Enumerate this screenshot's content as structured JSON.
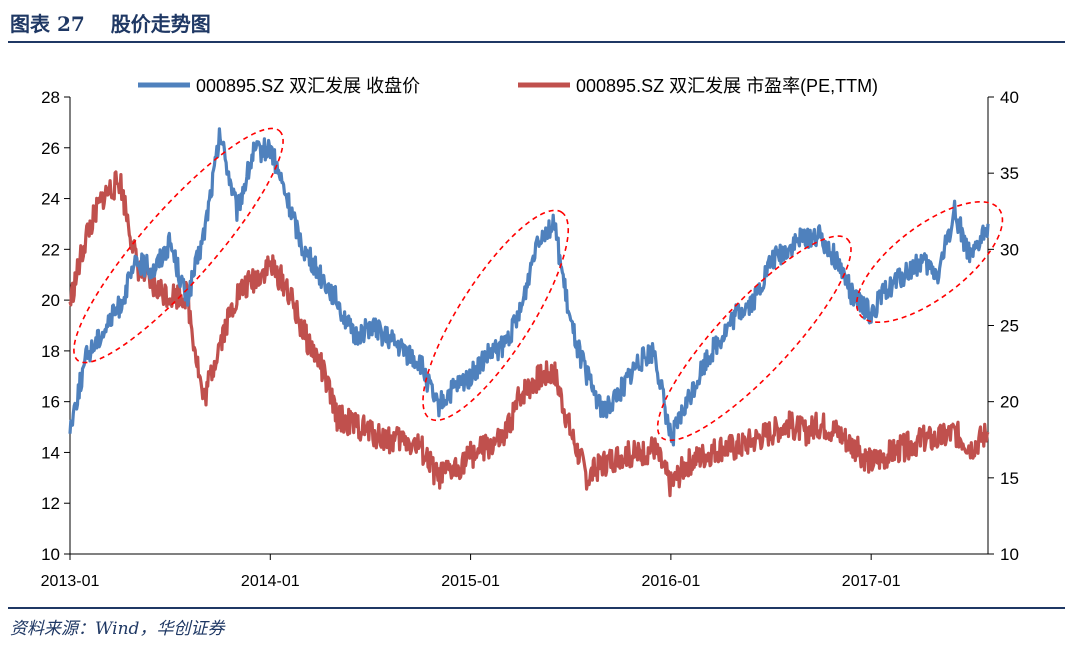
{
  "header": {
    "fig_label": "图表 27",
    "title": "股价走势图"
  },
  "footer": {
    "source": "资料来源：Wind，华创证券"
  },
  "chart_data": {
    "type": "line",
    "x_ticks": [
      "2013-01",
      "2014-01",
      "2015-01",
      "2016-01",
      "2017-01"
    ],
    "x_range": [
      "2013-01",
      "2017-08"
    ],
    "y_left": {
      "min": 10,
      "max": 28,
      "ticks": [
        10,
        12,
        14,
        16,
        18,
        20,
        22,
        24,
        26,
        28
      ]
    },
    "y_right": {
      "min": 10,
      "max": 40,
      "ticks": [
        10,
        15,
        20,
        25,
        30,
        35,
        40
      ]
    },
    "grid": false,
    "legend_position": "top",
    "series": [
      {
        "name": "000895.SZ 双汇发展 收盘价",
        "axis": "left",
        "color": "#4f81bd",
        "points": [
          [
            "2013-01",
            15.0
          ],
          [
            "2013-02",
            17.8
          ],
          [
            "2013-03",
            18.8
          ],
          [
            "2013-04",
            19.8
          ],
          [
            "2013-05",
            21.5
          ],
          [
            "2013-06",
            21.2
          ],
          [
            "2013-07",
            22.3
          ],
          [
            "2013-08",
            20.0
          ],
          [
            "2013-09",
            22.5
          ],
          [
            "2013-10",
            26.5
          ],
          [
            "2013-11",
            23.5
          ],
          [
            "2013-12",
            25.8
          ],
          [
            "2014-01",
            26.0
          ],
          [
            "2014-02",
            24.0
          ],
          [
            "2014-03",
            22.0
          ],
          [
            "2014-04",
            21.0
          ],
          [
            "2014-05",
            20.0
          ],
          [
            "2014-06",
            18.5
          ],
          [
            "2014-07",
            19.0
          ],
          [
            "2014-08",
            18.5
          ],
          [
            "2014-09",
            18.0
          ],
          [
            "2014-10",
            17.5
          ],
          [
            "2014-11",
            15.8
          ],
          [
            "2014-12",
            16.5
          ],
          [
            "2015-01",
            17.0
          ],
          [
            "2015-02",
            17.8
          ],
          [
            "2015-03",
            18.2
          ],
          [
            "2015-04",
            19.5
          ],
          [
            "2015-05",
            22.5
          ],
          [
            "2015-06",
            23.0
          ],
          [
            "2015-07",
            19.0
          ],
          [
            "2015-08",
            17.0
          ],
          [
            "2015-09",
            15.5
          ],
          [
            "2015-10",
            16.5
          ],
          [
            "2015-11",
            17.5
          ],
          [
            "2015-12",
            18.0
          ],
          [
            "2016-01",
            14.5
          ],
          [
            "2016-02",
            16.0
          ],
          [
            "2016-03",
            17.5
          ],
          [
            "2016-04",
            18.5
          ],
          [
            "2016-05",
            19.5
          ],
          [
            "2016-06",
            20.0
          ],
          [
            "2016-07",
            21.5
          ],
          [
            "2016-08",
            22.0
          ],
          [
            "2016-09",
            22.5
          ],
          [
            "2016-10",
            22.5
          ],
          [
            "2016-11",
            21.5
          ],
          [
            "2016-12",
            20.0
          ],
          [
            "2017-01",
            19.5
          ],
          [
            "2017-02",
            20.5
          ],
          [
            "2017-03",
            21.0
          ],
          [
            "2017-04",
            21.5
          ],
          [
            "2017-05",
            21.0
          ],
          [
            "2017-06",
            23.5
          ],
          [
            "2017-07",
            21.5
          ],
          [
            "2017-08",
            23.0
          ]
        ]
      },
      {
        "name": "000895.SZ 双汇发展 市盈率(PE,TTM)",
        "axis": "right",
        "color": "#c0504d",
        "points": [
          [
            "2013-01",
            26.5
          ],
          [
            "2013-02",
            31.0
          ],
          [
            "2013-03",
            33.5
          ],
          [
            "2013-04",
            34.5
          ],
          [
            "2013-05",
            29.0
          ],
          [
            "2013-06",
            27.5
          ],
          [
            "2013-07",
            27.0
          ],
          [
            "2013-08",
            27.0
          ],
          [
            "2013-09",
            20.0
          ],
          [
            "2013-10",
            24.0
          ],
          [
            "2013-11",
            27.0
          ],
          [
            "2013-12",
            28.0
          ],
          [
            "2014-01",
            29.0
          ],
          [
            "2014-02",
            27.5
          ],
          [
            "2014-03",
            24.5
          ],
          [
            "2014-04",
            22.5
          ],
          [
            "2014-05",
            19.0
          ],
          [
            "2014-06",
            18.5
          ],
          [
            "2014-07",
            18.0
          ],
          [
            "2014-08",
            17.5
          ],
          [
            "2014-09",
            17.5
          ],
          [
            "2014-10",
            17.0
          ],
          [
            "2014-11",
            15.0
          ],
          [
            "2014-12",
            15.5
          ],
          [
            "2015-01",
            16.5
          ],
          [
            "2015-02",
            17.0
          ],
          [
            "2015-03",
            17.5
          ],
          [
            "2015-04",
            20.5
          ],
          [
            "2015-05",
            21.5
          ],
          [
            "2015-06",
            22.0
          ],
          [
            "2015-07",
            18.0
          ],
          [
            "2015-08",
            15.0
          ],
          [
            "2015-09",
            16.0
          ],
          [
            "2015-10",
            16.5
          ],
          [
            "2015-11",
            16.5
          ],
          [
            "2015-12",
            17.0
          ],
          [
            "2016-01",
            14.5
          ],
          [
            "2016-02",
            16.0
          ],
          [
            "2016-03",
            16.5
          ],
          [
            "2016-04",
            17.0
          ],
          [
            "2016-05",
            17.0
          ],
          [
            "2016-06",
            17.5
          ],
          [
            "2016-07",
            18.0
          ],
          [
            "2016-08",
            18.5
          ],
          [
            "2016-09",
            18.0
          ],
          [
            "2016-10",
            18.5
          ],
          [
            "2016-11",
            18.0
          ],
          [
            "2016-12",
            17.0
          ],
          [
            "2017-01",
            16.0
          ],
          [
            "2017-02",
            16.5
          ],
          [
            "2017-03",
            17.0
          ],
          [
            "2017-04",
            17.5
          ],
          [
            "2017-05",
            17.5
          ],
          [
            "2017-06",
            18.0
          ],
          [
            "2017-07",
            17.0
          ],
          [
            "2017-08",
            18.0
          ]
        ]
      }
    ],
    "annotations": [
      {
        "shape": "dashed-ellipse",
        "color": "#ff0000",
        "from": "2013-02",
        "to": "2014-01"
      },
      {
        "shape": "dashed-ellipse",
        "color": "#ff0000",
        "from": "2014-11",
        "to": "2015-06"
      },
      {
        "shape": "dashed-ellipse",
        "color": "#ff0000",
        "from": "2016-01",
        "to": "2016-11"
      },
      {
        "shape": "dashed-ellipse",
        "color": "#ff0000",
        "from": "2017-01",
        "to": "2017-08"
      }
    ]
  }
}
